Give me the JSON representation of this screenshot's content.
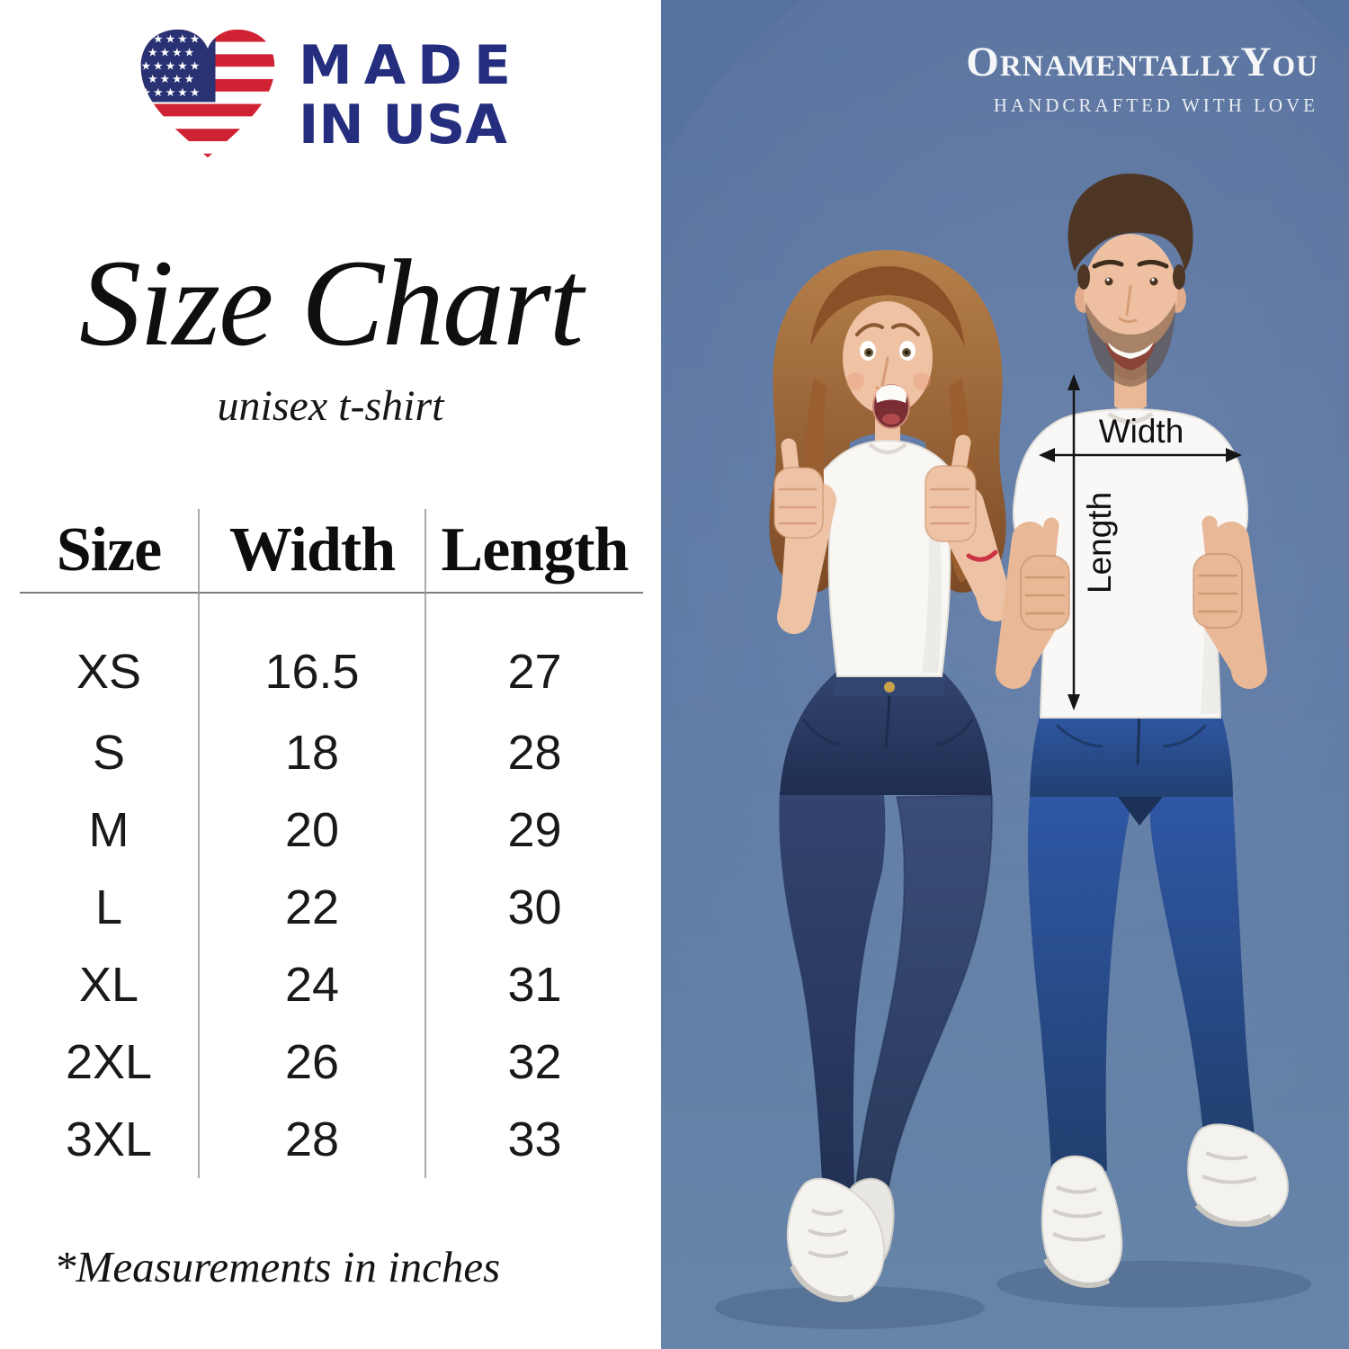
{
  "badge": {
    "line1": "MADE",
    "line2": "IN USA"
  },
  "heading": {
    "title": "Size Chart",
    "subtitle": "unisex t-shirt"
  },
  "size_table": {
    "headers": [
      "Size",
      "Width",
      "Length"
    ],
    "rows": [
      {
        "size": "XS",
        "width": "16.5",
        "length": "27"
      },
      {
        "size": "S",
        "width": "18",
        "length": "28"
      },
      {
        "size": "M",
        "width": "20",
        "length": "29"
      },
      {
        "size": "L",
        "width": "22",
        "length": "30"
      },
      {
        "size": "XL",
        "width": "24",
        "length": "31"
      },
      {
        "size": "2XL",
        "width": "26",
        "length": "32"
      },
      {
        "size": "3XL",
        "width": "28",
        "length": "33"
      }
    ]
  },
  "footnote": "*Measurements in inches",
  "brand": {
    "name": "OrnamentallyYou",
    "tagline": "HANDCRAFTED WITH LOVE"
  },
  "photo_annotations": {
    "width": "Width",
    "length": "Length"
  },
  "colors": {
    "logo_navy": "#252e7e",
    "flag_red": "#cf2233",
    "photo_background": "#5d79a4",
    "table_text": "#161616"
  }
}
